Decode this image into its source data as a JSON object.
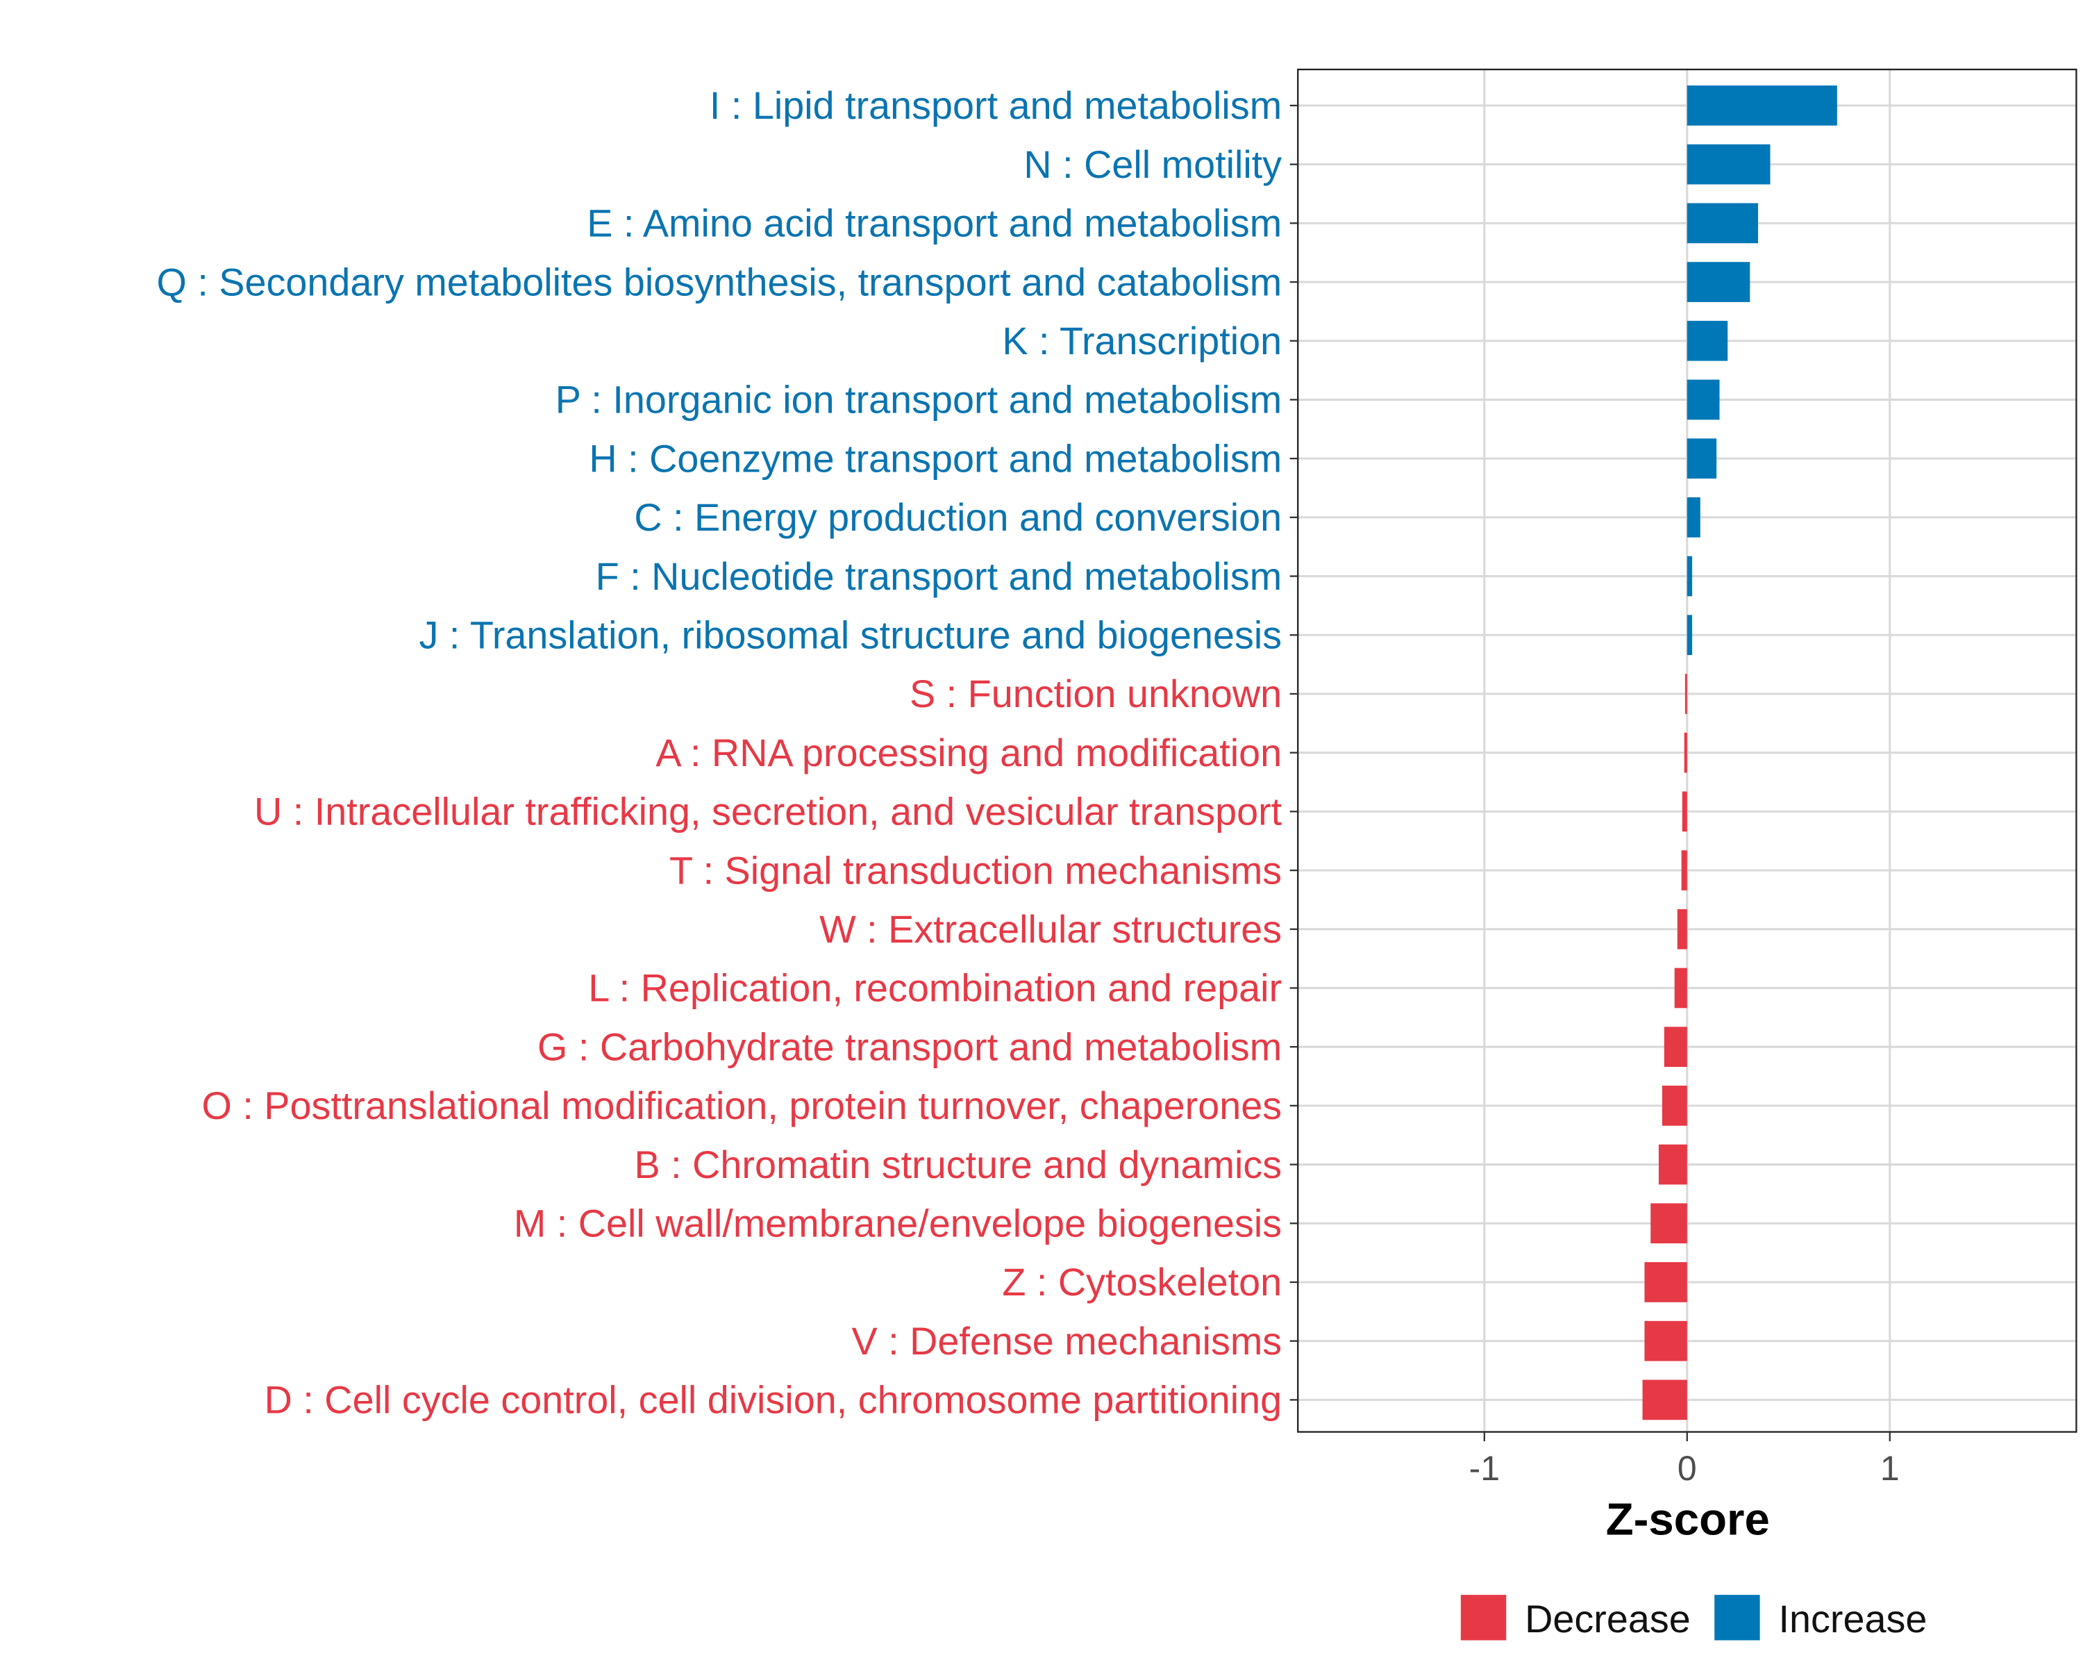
{
  "chart_data": {
    "type": "bar",
    "orientation": "horizontal",
    "title": "",
    "xlabel": "Z-score",
    "ylabel": "",
    "xlim": [
      -1.92,
      1.92
    ],
    "xticks": [
      -1,
      0,
      1
    ],
    "xtick_labels": [
      "-1",
      "0",
      "1"
    ],
    "grid": true,
    "colors": {
      "Decrease": "#E63946",
      "Increase": "#0077B6"
    },
    "legend": {
      "position": "bottom",
      "entries": [
        "Decrease",
        "Increase"
      ]
    },
    "categories": [
      "I : Lipid transport and metabolism",
      "N : Cell motility",
      "E : Amino acid transport and metabolism",
      "Q : Secondary metabolites biosynthesis, transport and catabolism",
      "K : Transcription",
      "P : Inorganic ion transport and metabolism",
      "H : Coenzyme transport and metabolism",
      "C : Energy production and conversion",
      "F : Nucleotide transport and metabolism",
      "J : Translation, ribosomal structure and biogenesis",
      "S : Function unknown",
      "A : RNA processing and modification",
      "U : Intracellular trafficking, secretion, and vesicular transport",
      "T : Signal transduction mechanisms",
      "W : Extracellular structures",
      "L : Replication, recombination and repair",
      "G : Carbohydrate transport and metabolism",
      "O : Posttranslational modification, protein turnover, chaperones",
      "B : Chromatin structure and dynamics",
      "M : Cell wall/membrane/envelope biogenesis",
      "Z : Cytoskeleton",
      "V : Defense mechanisms",
      "D : Cell cycle control, cell division, chromosome partitioning"
    ],
    "values": [
      0.74,
      0.41,
      0.35,
      0.31,
      0.2,
      0.16,
      0.145,
      0.065,
      0.025,
      0.025,
      -0.01,
      -0.014,
      -0.024,
      -0.028,
      -0.048,
      -0.062,
      -0.113,
      -0.123,
      -0.14,
      -0.18,
      -0.21,
      -0.21,
      -0.22
    ],
    "groups": [
      "Increase",
      "Increase",
      "Increase",
      "Increase",
      "Increase",
      "Increase",
      "Increase",
      "Increase",
      "Increase",
      "Increase",
      "Decrease",
      "Decrease",
      "Decrease",
      "Decrease",
      "Decrease",
      "Decrease",
      "Decrease",
      "Decrease",
      "Decrease",
      "Decrease",
      "Decrease",
      "Decrease",
      "Decrease"
    ]
  }
}
